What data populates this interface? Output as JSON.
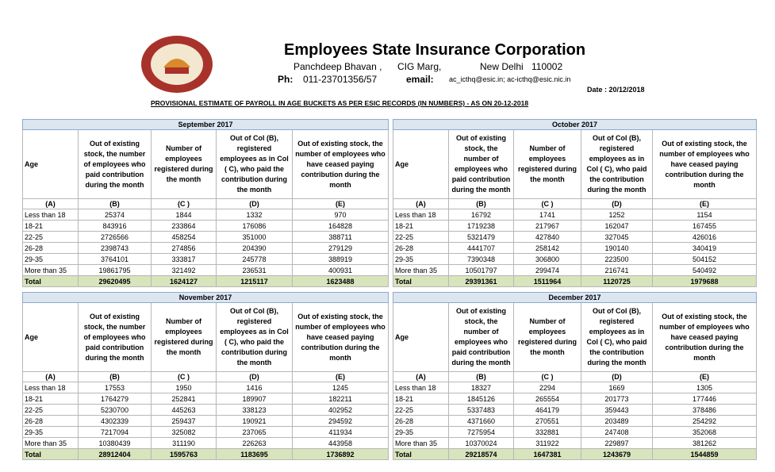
{
  "header": {
    "title": "Employees State Insurance Corporation",
    "address": [
      "Panchdeep Bhavan ,",
      "CIG Marg,",
      "New Delhi",
      "110002"
    ],
    "phone_label": "Ph:",
    "phone": "011-23701356/57",
    "email_label": "email:",
    "email": "ac_icthq@esic.in; ac-icthq@esic.nic.in",
    "date": "Date : 20/12/2018",
    "subtitle": "PROVISIONAL ESTIMATE OF PAYROLL IN AGE BUCKETS AS PER ESIC RECORDS (IN NUMBERS) - AS ON 20-12-2018"
  },
  "tables": [
    {
      "month": "September 2017",
      "headers": [
        "Age",
        "Out of existing stock, the number of employees who paid contribution during the month",
        "Number of employees registered during the month",
        "Out of Col (B), registered employees as in Col ( C), who paid the contribution during the month",
        "Out of existing stock, the number of employees who have ceased paying contribution during the month"
      ],
      "letters": [
        "(A)",
        "(B)",
        "(C )",
        "(D)",
        "(E)"
      ],
      "rows": [
        [
          "Less than 18",
          25374,
          1844,
          1332,
          970
        ],
        [
          "18-21",
          843916,
          233864,
          176086,
          164828
        ],
        [
          "22-25",
          2726566,
          458254,
          351000,
          388711
        ],
        [
          "26-28",
          2398743,
          274856,
          204390,
          279129
        ],
        [
          "29-35",
          3764101,
          333817,
          245778,
          388919
        ],
        [
          "More than 35",
          19861795,
          321492,
          236531,
          400931
        ]
      ],
      "total": [
        "Total",
        29620495,
        1624127,
        1215117,
        1623488
      ]
    },
    {
      "month": "October 2017",
      "headers": [
        "Age",
        "Out of existing stock, the number of employees who paid contribution during the month",
        "Number of employees registered during the month",
        "Out of Col (B), registered employees as in Col ( C), who paid the contribution during the month",
        "Out of existing stock, the number of employees who have ceased paying contribution during the month"
      ],
      "letters": [
        "(A)",
        "(B)",
        "(C )",
        "(D)",
        "(E)"
      ],
      "rows": [
        [
          "Less than 18",
          16792,
          1741,
          1252,
          1154
        ],
        [
          "18-21",
          1719238,
          217967,
          162047,
          167455
        ],
        [
          "22-25",
          5321479,
          427840,
          327045,
          426016
        ],
        [
          "26-28",
          4441707,
          258142,
          190140,
          340419
        ],
        [
          "29-35",
          7390348,
          306800,
          223500,
          504152
        ],
        [
          "More than 35",
          10501797,
          299474,
          216741,
          540492
        ]
      ],
      "total": [
        "Total",
        29391361,
        1511964,
        1120725,
        1979688
      ]
    },
    {
      "month": "November 2017",
      "headers": [
        "Age",
        "Out of existing stock, the number of employees who paid contribution during the month",
        "Number of employees registered during the month",
        "Out of Col (B), registered employees as in Col ( C), who paid the contribution during the month",
        "Out of existing stock, the number of employees who have ceased paying contribution during the month"
      ],
      "letters": [
        "(A)",
        "(B)",
        "(C )",
        "(D)",
        "(E)"
      ],
      "rows": [
        [
          "Less than 18",
          17553,
          1950,
          1416,
          1245
        ],
        [
          "18-21",
          1764279,
          252841,
          189907,
          182211
        ],
        [
          "22-25",
          5230700,
          445263,
          338123,
          402952
        ],
        [
          "26-28",
          4302339,
          259437,
          190921,
          294592
        ],
        [
          "29-35",
          7217094,
          325082,
          237065,
          411934
        ],
        [
          "More than 35",
          10380439,
          311190,
          226263,
          443958
        ]
      ],
      "total": [
        "Total",
        28912404,
        1595763,
        1183695,
        1736892
      ]
    },
    {
      "month": "December 2017",
      "headers": [
        "Age",
        "Out of existing stock, the number of employees who paid contribution during the month",
        "Number of employees registered during the month",
        "Out of Col (B), registered employees as in Col ( C), who paid the contribution during the month",
        "Out of existing stock, the number of employees who have ceased paying contribution during the month"
      ],
      "letters": [
        "(A)",
        "(B)",
        "(C )",
        "(D)",
        "(E)"
      ],
      "rows": [
        [
          "Less than 18",
          18327,
          2294,
          1669,
          1305
        ],
        [
          "18-21",
          1845126,
          265554,
          201773,
          177446
        ],
        [
          "22-25",
          5337483,
          464179,
          359443,
          378486
        ],
        [
          "26-28",
          4371660,
          270551,
          203489,
          254292
        ],
        [
          "29-35",
          7275954,
          332881,
          247408,
          352068
        ],
        [
          "More than 35",
          10370024,
          311922,
          229897,
          381262
        ]
      ],
      "total": [
        "Total",
        29218574,
        1647381,
        1243679,
        1544859
      ]
    }
  ]
}
